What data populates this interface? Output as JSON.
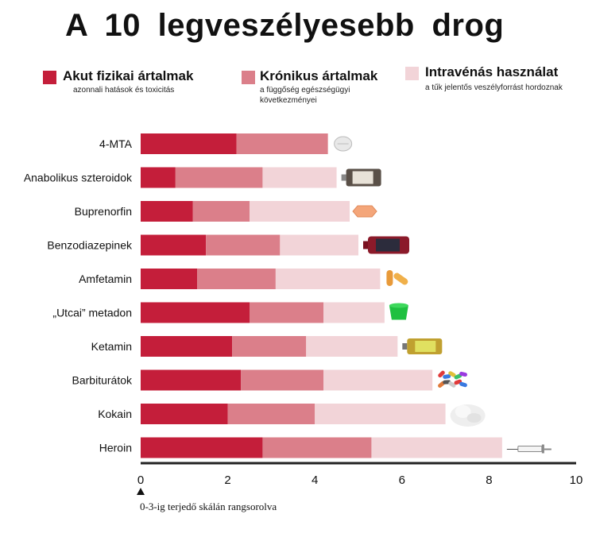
{
  "title": "A 10 legveszélyesebb drog",
  "legend": [
    {
      "label": "Akut fizikai ártalmak",
      "desc": "azonnali hatások és toxicitás",
      "color": "#c41e3a"
    },
    {
      "label": "Krónikus ártalmak",
      "desc": "a függőség egészségügyi következményei",
      "color": "#db7f8a"
    },
    {
      "label": "Intravénás használat",
      "desc": "a tűk jelentős veszélyforrást hordoznak",
      "color": "#f2d4d8"
    }
  ],
  "note": "0-3-ig  terjedő skálán rangsorolva",
  "chart_data": {
    "type": "bar",
    "orientation": "horizontal",
    "stacked": true,
    "categories": [
      "4-MTA",
      "Anabolikus szteroidok",
      "Buprenorfin",
      "Benzodiazepinek",
      "Amfetamin",
      "„Utcai” metadon",
      "Ketamin",
      "Barbiturátok",
      "Kokain",
      "Heroin"
    ],
    "series": [
      {
        "name": "Akut fizikai ártalmak",
        "color": "#c41e3a",
        "values": [
          2.2,
          0.8,
          1.2,
          1.5,
          1.3,
          2.5,
          2.1,
          2.3,
          2.0,
          2.8
        ]
      },
      {
        "name": "Krónikus ártalmak",
        "color": "#db7f8a",
        "values": [
          2.1,
          2.0,
          1.3,
          1.7,
          1.8,
          1.7,
          1.7,
          1.9,
          2.0,
          2.5
        ]
      },
      {
        "name": "Intravénás használat",
        "color": "#f2d4d8",
        "values": [
          0.0,
          1.7,
          2.3,
          1.8,
          2.4,
          1.4,
          2.1,
          2.5,
          3.0,
          3.0
        ]
      }
    ],
    "icons": [
      "pill-icon",
      "vial-icon",
      "tablet-icon",
      "bottle-icon",
      "capsule-icon",
      "syrup-cup-icon",
      "ketamine-vial-icon",
      "pills-pile-icon",
      "powder-icon",
      "syringe-icon"
    ],
    "xticks": [
      "0",
      "2",
      "4",
      "6",
      "8",
      "10"
    ],
    "xlim": [
      0,
      10
    ],
    "grid": false,
    "legend_position": "top"
  }
}
